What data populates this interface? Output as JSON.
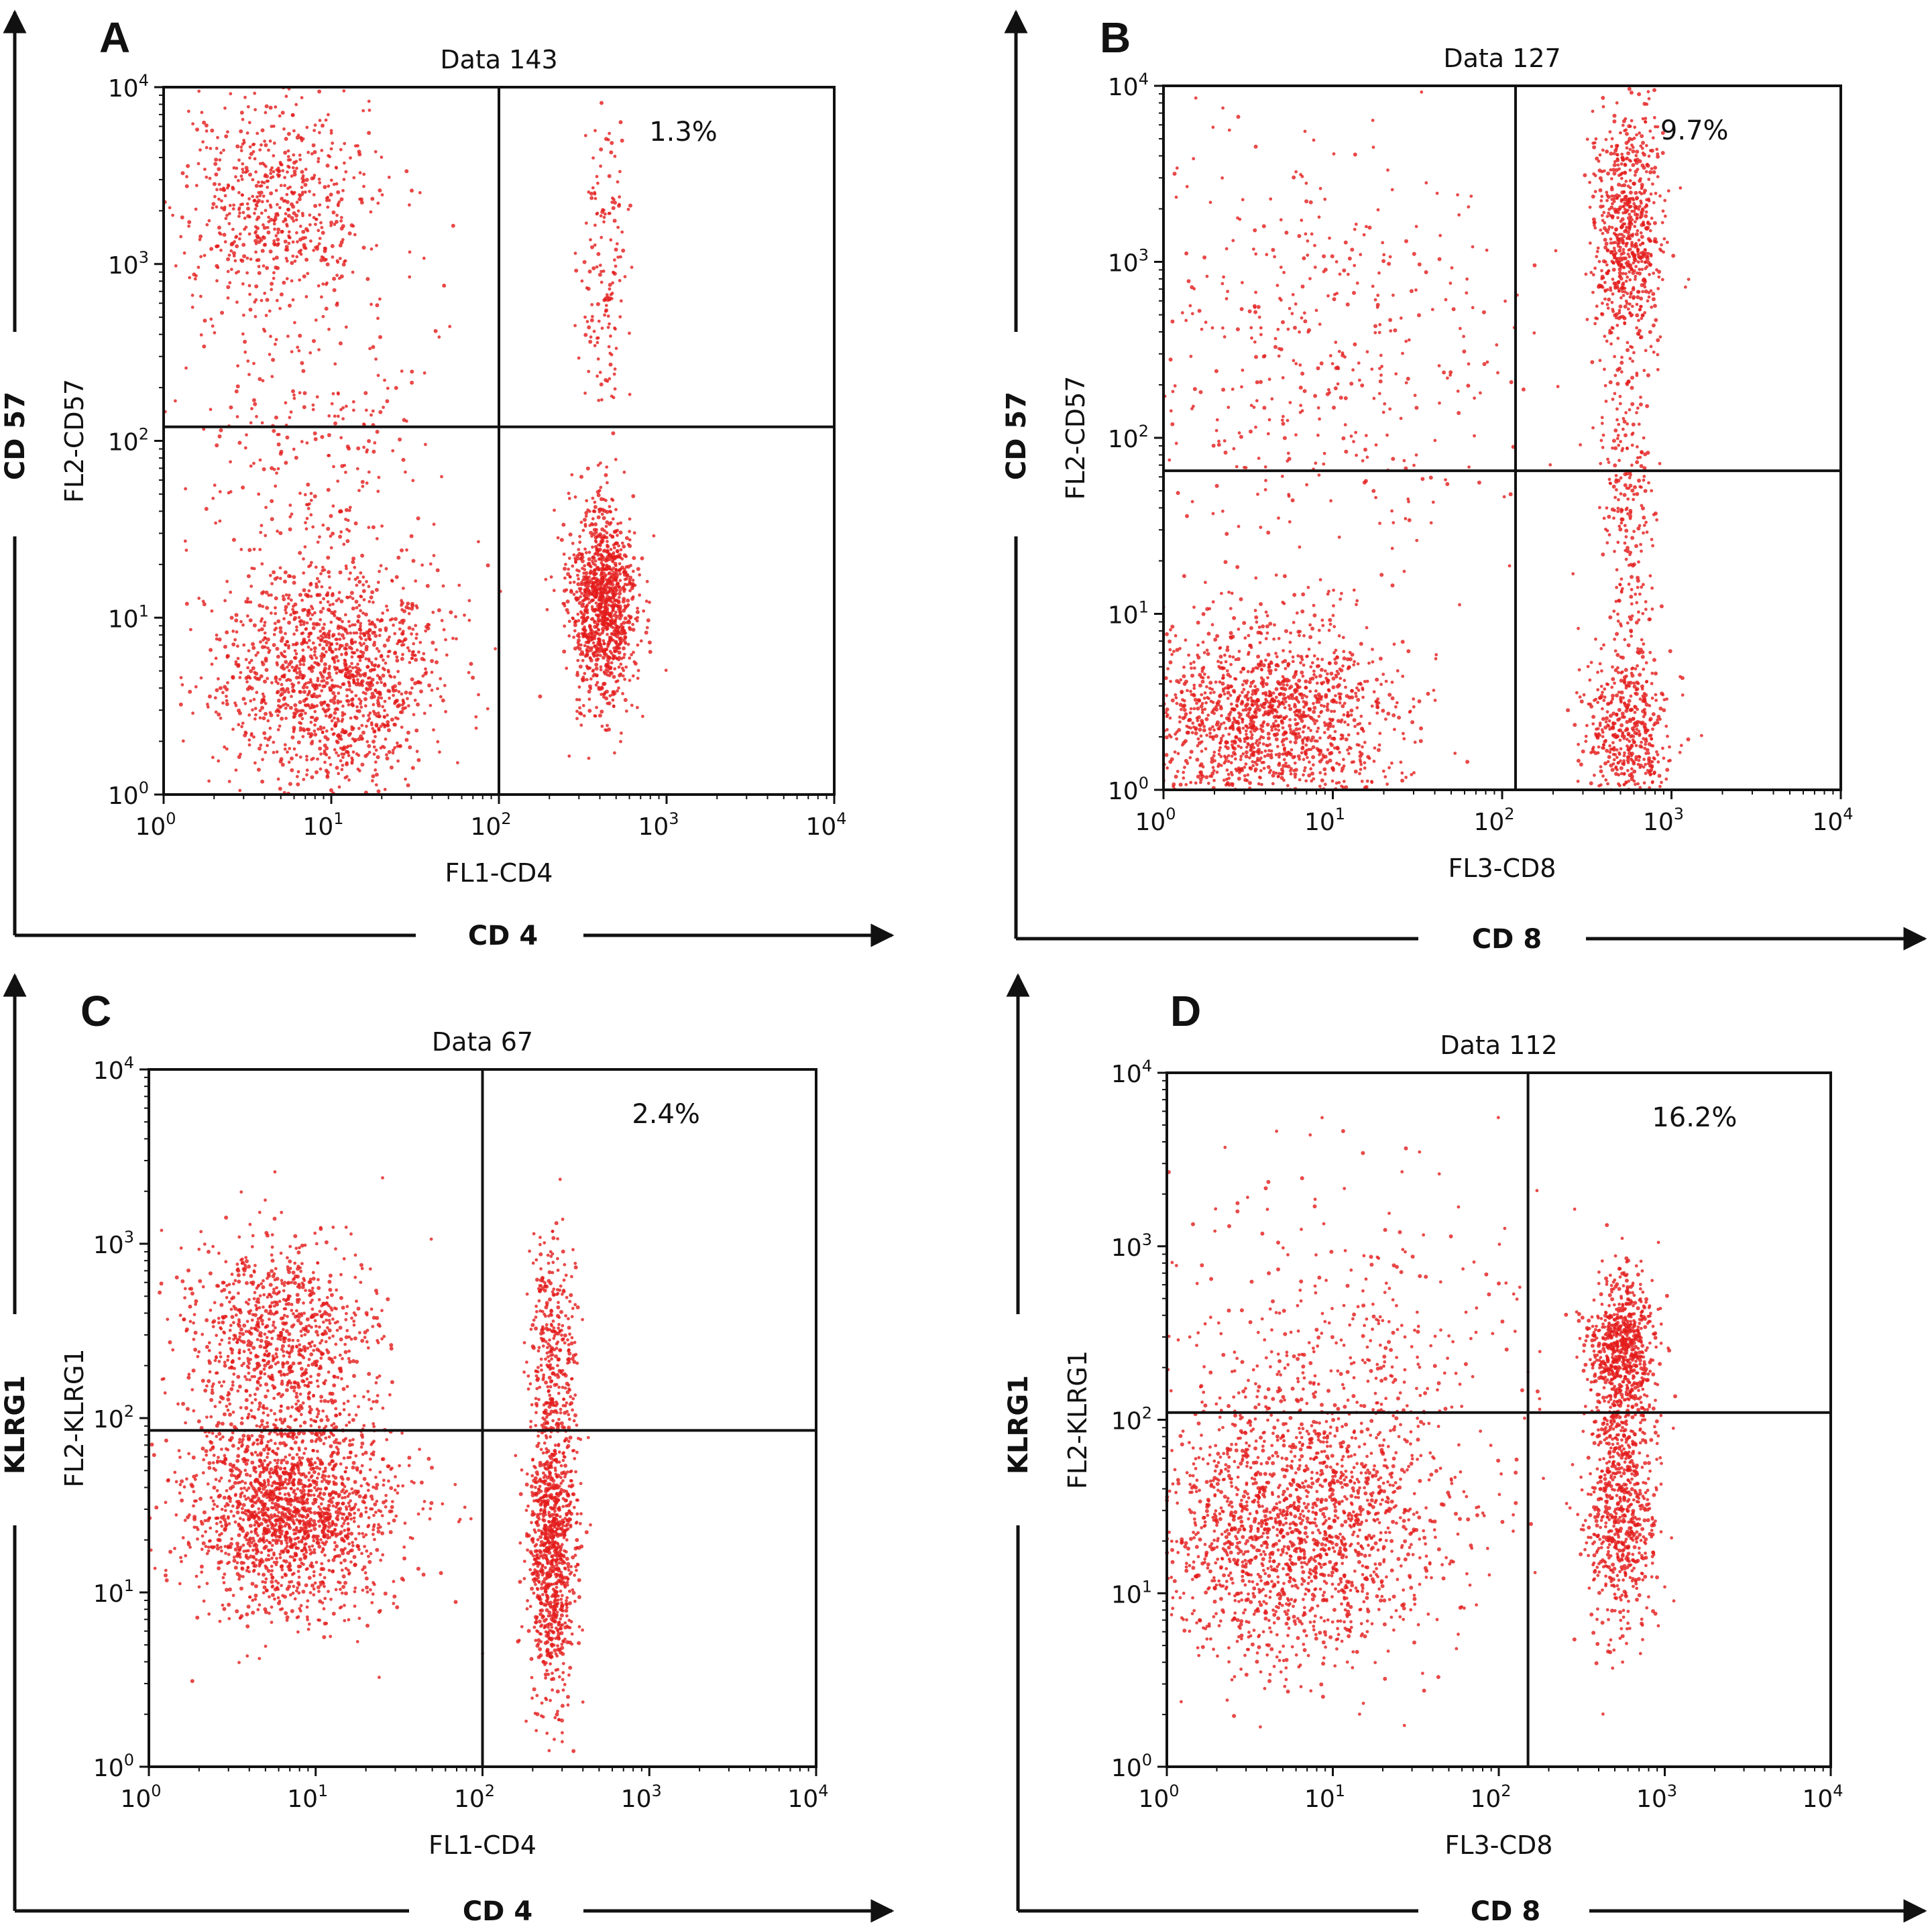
{
  "figure": {
    "dot_color": "#e31b1b",
    "axis_color": "#111111"
  },
  "chart_data": [
    {
      "panel": "A",
      "type": "scatter",
      "title": "Data 143",
      "xlabel": "FL1-CD4",
      "ylabel": "FL2-CD57",
      "outer_xlabel": "CD 4",
      "outer_ylabel": "CD 57",
      "xscale": "log",
      "yscale": "log",
      "xlim": [
        1,
        10000
      ],
      "ylim": [
        1,
        10000
      ],
      "ticks": [
        {
          "b": "10",
          "e": "0"
        },
        {
          "b": "10",
          "e": "1"
        },
        {
          "b": "10",
          "e": "2"
        },
        {
          "b": "10",
          "e": "3"
        },
        {
          "b": "10",
          "e": "4"
        }
      ],
      "quadrant_gate": {
        "x": 100,
        "y": 120
      },
      "annotation": {
        "text": "1.3%",
        "quadrant": "upper-right"
      },
      "populations": [
        {
          "cx": 10,
          "cy": 5,
          "sx": 0.32,
          "sy": 0.32,
          "n": 1400
        },
        {
          "cx": 420,
          "cy": 12,
          "sx": 0.1,
          "sy": 0.28,
          "n": 1100
        },
        {
          "cx": 420,
          "cy": 900,
          "sx": 0.07,
          "sy": 0.45,
          "n": 160
        },
        {
          "cx": 5,
          "cy": 2200,
          "sx": 0.3,
          "sy": 0.3,
          "n": 650
        },
        {
          "cx": 8,
          "cy": 100,
          "sx": 0.35,
          "sy": 0.45,
          "n": 250
        }
      ]
    },
    {
      "panel": "B",
      "type": "scatter",
      "title": "Data 127",
      "xlabel": "FL3-CD8",
      "ylabel": "FL2-CD57",
      "outer_xlabel": "CD 8",
      "outer_ylabel": "CD 57",
      "xscale": "log",
      "yscale": "log",
      "xlim": [
        1,
        10000
      ],
      "ylim": [
        1,
        10000
      ],
      "ticks": [
        {
          "b": "10",
          "e": "0"
        },
        {
          "b": "10",
          "e": "1"
        },
        {
          "b": "10",
          "e": "2"
        },
        {
          "b": "10",
          "e": "3"
        },
        {
          "b": "10",
          "e": "4"
        }
      ],
      "quadrant_gate": {
        "x": 120,
        "y": 65
      },
      "annotation": {
        "text": "9.7%",
        "quadrant": "upper-right"
      },
      "populations": [
        {
          "cx": 4,
          "cy": 2.5,
          "sx": 0.4,
          "sy": 0.28,
          "n": 1500
        },
        {
          "cx": 550,
          "cy": 2,
          "sx": 0.12,
          "sy": 0.25,
          "n": 500
        },
        {
          "cx": 550,
          "cy": 1500,
          "sx": 0.1,
          "sy": 0.35,
          "n": 700
        },
        {
          "cx": 550,
          "cy": 40,
          "sx": 0.08,
          "sy": 0.5,
          "n": 250
        },
        {
          "cx": 8,
          "cy": 300,
          "sx": 0.55,
          "sy": 0.6,
          "n": 450
        }
      ]
    },
    {
      "panel": "C",
      "type": "scatter",
      "title": "Data 67",
      "xlabel": "FL1-CD4",
      "ylabel": "FL2-KLRG1",
      "outer_xlabel": "CD 4",
      "outer_ylabel": "KLRG1",
      "xscale": "log",
      "yscale": "log",
      "xlim": [
        1,
        10000
      ],
      "ylim": [
        1,
        10000
      ],
      "ticks": [
        {
          "b": "10",
          "e": "0"
        },
        {
          "b": "10",
          "e": "1"
        },
        {
          "b": "10",
          "e": "2"
        },
        {
          "b": "10",
          "e": "3"
        },
        {
          "b": "10",
          "e": "4"
        }
      ],
      "quadrant_gate": {
        "x": 100,
        "y": 85
      },
      "annotation": {
        "text": "2.4%",
        "quadrant": "upper-right"
      },
      "populations": [
        {
          "cx": 7,
          "cy": 30,
          "sx": 0.3,
          "sy": 0.3,
          "n": 1800
        },
        {
          "cx": 6,
          "cy": 300,
          "sx": 0.28,
          "sy": 0.28,
          "n": 900
        },
        {
          "cx": 260,
          "cy": 20,
          "sx": 0.07,
          "sy": 0.45,
          "n": 1000
        },
        {
          "cx": 260,
          "cy": 300,
          "sx": 0.07,
          "sy": 0.3,
          "n": 250
        }
      ]
    },
    {
      "panel": "D",
      "type": "scatter",
      "title": "Data 112",
      "xlabel": "FL3-CD8",
      "ylabel": "FL2-KLRG1",
      "outer_xlabel": "CD 8",
      "outer_ylabel": "KLRG1",
      "xscale": "log",
      "yscale": "log",
      "xlim": [
        1,
        10000
      ],
      "ylim": [
        1,
        10000
      ],
      "ticks": [
        {
          "b": "10",
          "e": "0"
        },
        {
          "b": "10",
          "e": "1"
        },
        {
          "b": "10",
          "e": "2"
        },
        {
          "b": "10",
          "e": "3"
        },
        {
          "b": "10",
          "e": "4"
        }
      ],
      "quadrant_gate": {
        "x": 150,
        "y": 110
      },
      "annotation": {
        "text": "16.2%",
        "quadrant": "upper-right"
      },
      "populations": [
        {
          "cx": 6,
          "cy": 25,
          "sx": 0.45,
          "sy": 0.4,
          "n": 1900
        },
        {
          "cx": 550,
          "cy": 30,
          "sx": 0.1,
          "sy": 0.35,
          "n": 700
        },
        {
          "cx": 550,
          "cy": 250,
          "sx": 0.1,
          "sy": 0.22,
          "n": 700
        },
        {
          "cx": 12,
          "cy": 300,
          "sx": 0.55,
          "sy": 0.5,
          "n": 300
        }
      ]
    }
  ]
}
